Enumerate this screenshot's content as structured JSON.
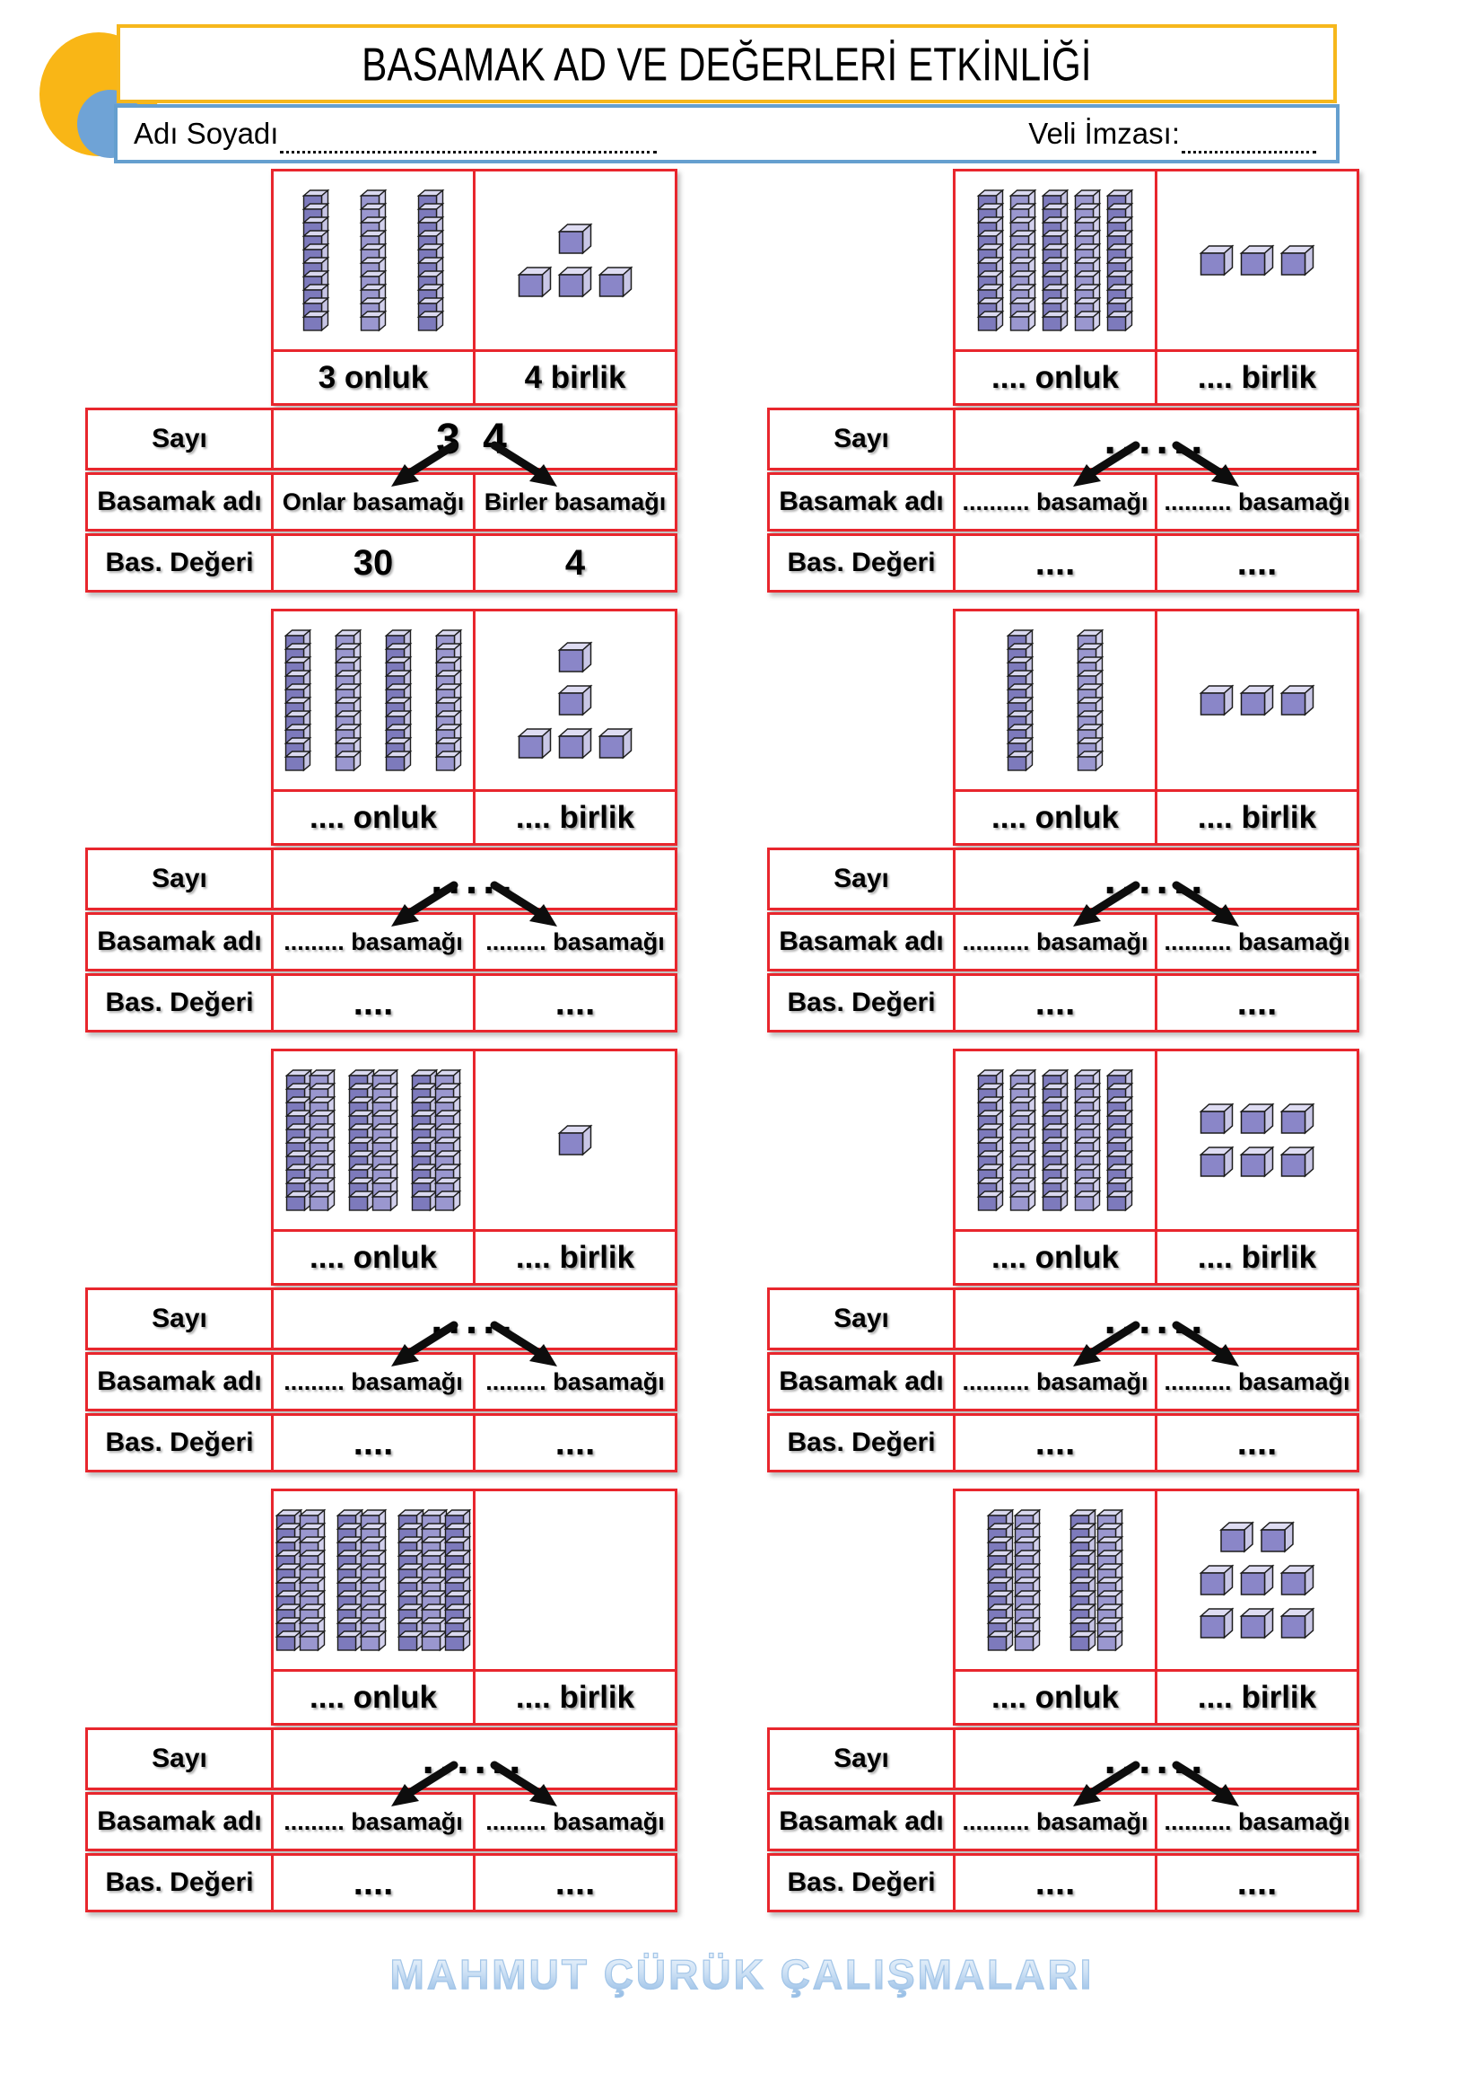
{
  "header": {
    "title": "BASAMAK AD VE DEĞERLERİ ETKİNLİĞİ",
    "name_label": "Adı Soyadı",
    "signature_label": "Veli İmzası:"
  },
  "row_labels": {
    "sayi": "Sayı",
    "basamak_adi": "Basamak adı",
    "bas_degeri": "Bas. Değeri"
  },
  "footer": {
    "credit": "MAHMUT ÇÜRÜK ÇALIŞMALARI"
  },
  "colors": {
    "border_red": "#e8262d",
    "title_yellow": "#f6b71c",
    "name_blue": "#659fcf",
    "rod_front": "#7d7abc",
    "rod_front_alt": "#9age",
    "rod_side": "#c6c4e4",
    "rod_side_alt": "#d2d0ec",
    "rod_top": "#d9d8ef",
    "cube_front": "#8a86c8",
    "cube_side": "#c9c7e6",
    "cube_top": "#dedcf2",
    "arrow_black": "#0d0d0d",
    "footer_blue": "#8fb9e4"
  },
  "blocks": [
    {
      "tens": 3,
      "ones": 4,
      "tens_groups": [
        3
      ],
      "rod_gap": 44,
      "group_gap": 24,
      "ones_rows": [
        1,
        3
      ],
      "onluk_label": "3 onluk",
      "birlik_label": "4 birlik",
      "sayi_value": "3 4",
      "tens_place": "Onlar basamağı",
      "ones_place": "Birler basamağı",
      "tens_value": "30",
      "ones_value": "4"
    },
    {
      "tens": 5,
      "ones": 3,
      "tens_groups": [
        5
      ],
      "rod_gap": 16,
      "group_gap": 24,
      "ones_rows": [
        3
      ],
      "onluk_label": ".... onluk",
      "birlik_label": ".... birlik",
      "sayi_value": "......",
      "tens_place": ".......... basamağı",
      "ones_place": ".......... basamağı",
      "tens_value": "....",
      "ones_value": "...."
    },
    {
      "tens": 4,
      "ones": 5,
      "tens_groups": [
        4
      ],
      "rod_gap": 36,
      "group_gap": 24,
      "ones_rows": [
        1,
        1,
        3
      ],
      "onluk_label": ".... onluk",
      "birlik_label": ".... birlik",
      "sayi_value": ".....",
      "tens_place": "......... basamağı",
      "ones_place": "......... basamağı",
      "tens_value": "....",
      "ones_value": "...."
    },
    {
      "tens": 2,
      "ones": 3,
      "tens_groups": [
        2
      ],
      "rod_gap": 58,
      "group_gap": 24,
      "ones_rows": [
        3
      ],
      "onluk_label": ".... onluk",
      "birlik_label": ".... birlik",
      "sayi_value": "......",
      "tens_place": ".......... basamağı",
      "ones_place": ".......... basamağı",
      "tens_value": "....",
      "ones_value": "...."
    },
    {
      "tens": 6,
      "ones": 1,
      "tens_groups": [
        2,
        2,
        2
      ],
      "rod_gap": 6,
      "group_gap": 24,
      "ones_rows": [
        1
      ],
      "onluk_label": ".... onluk",
      "birlik_label": ".... birlik",
      "sayi_value": ".....",
      "tens_place": "......... basamağı",
      "ones_place": "......... basamağı",
      "tens_value": "....",
      "ones_value": "...."
    },
    {
      "tens": 5,
      "ones": 6,
      "tens_groups": [
        5
      ],
      "rod_gap": 16,
      "group_gap": 24,
      "ones_rows": [
        3,
        3
      ],
      "onluk_label": ".... onluk",
      "birlik_label": ".... birlik",
      "sayi_value": "......",
      "tens_place": ".......... basamağı",
      "ones_place": ".......... basamağı",
      "tens_value": "....",
      "ones_value": "...."
    },
    {
      "tens": 7,
      "ones": 0,
      "tens_groups": [
        2,
        2,
        3
      ],
      "rod_gap": 6,
      "group_gap": 22,
      "ones_rows": [],
      "onluk_label": ".... onluk",
      "birlik_label": ".... birlik",
      "sayi_value": "......",
      "tens_place": "......... basamağı",
      "ones_place": "......... basamağı",
      "tens_value": "....",
      "ones_value": "...."
    },
    {
      "tens": 4,
      "ones": 8,
      "tens_groups": [
        2,
        2
      ],
      "rod_gap": 10,
      "group_gap": 42,
      "ones_rows": [
        2,
        3,
        3
      ],
      "onluk_label": ".... onluk",
      "birlik_label": ".... birlik",
      "sayi_value": "......",
      "tens_place": ".......... basamağı",
      "ones_place": ".......... basamağı",
      "tens_value": "....",
      "ones_value": "...."
    }
  ]
}
